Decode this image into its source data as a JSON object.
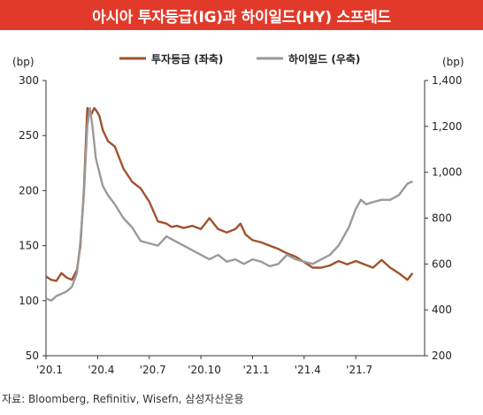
{
  "title": "아시아 투자등급(IG)과 하이일드(HY) 스프레드",
  "source": "자료: Bloomberg, Refinitiv, Wisefn, 삼성자산운용",
  "colors": {
    "banner": "#e23a2a",
    "ig": "#a0522d",
    "hy": "#9a9a9a"
  },
  "chart_data": {
    "type": "line",
    "title": "아시아 투자등급(IG)과 하이일드(HY) 스프레드",
    "left_unit": "(bp)",
    "right_unit": "(bp)",
    "left_ylim": [
      50,
      300
    ],
    "left_ticks": [
      "300",
      "250",
      "200",
      "150",
      "100",
      "50"
    ],
    "right_ylim": [
      200,
      1400
    ],
    "right_ticks": [
      "1,400",
      "1,200",
      "1,000",
      "800",
      "600",
      "400",
      "200"
    ],
    "x_ticks": [
      "'20.1",
      "'20.4",
      "'20.7",
      "'20.10",
      "'21.1",
      "'21.4",
      "'21.7"
    ],
    "grid": false,
    "legend": "top",
    "series": [
      {
        "name": "투자등급 (좌축)",
        "axis": "left",
        "color": "#a0522d",
        "x": [
          0,
          0.3,
          0.6,
          0.9,
          1.2,
          1.5,
          1.8,
          2.0,
          2.2,
          2.4,
          2.6,
          2.8,
          2.95,
          3.1,
          3.3,
          3.6,
          4.0,
          4.5,
          5.0,
          5.5,
          6.0,
          6.5,
          7.0,
          7.3,
          7.6,
          8.0,
          8.5,
          9.0,
          9.5,
          10.0,
          10.5,
          11.0,
          11.3,
          11.6,
          12.0,
          12.5,
          13.0,
          13.5,
          14.0,
          14.5,
          15.0,
          15.5,
          16.0,
          16.5,
          17.0,
          17.5,
          18.0,
          18.5,
          19.0,
          19.5,
          20.0,
          20.5,
          21.0,
          21.3
        ],
        "values": [
          122,
          119,
          118,
          125,
          121,
          119,
          128,
          150,
          200,
          275,
          268,
          275,
          272,
          268,
          255,
          245,
          240,
          220,
          208,
          202,
          190,
          172,
          170,
          167,
          168,
          166,
          168,
          165,
          175,
          165,
          162,
          165,
          170,
          160,
          155,
          153,
          150,
          147,
          143,
          140,
          135,
          130,
          130,
          132,
          136,
          133,
          136,
          133,
          130,
          137,
          130,
          125,
          119,
          125
        ]
      },
      {
        "name": "하이일드 (우축)",
        "axis": "right",
        "color": "#9a9a9a",
        "x": [
          0,
          0.3,
          0.6,
          0.9,
          1.2,
          1.5,
          1.8,
          2.0,
          2.2,
          2.4,
          2.55,
          2.7,
          2.9,
          3.1,
          3.3,
          3.6,
          4.0,
          4.5,
          5.0,
          5.5,
          6.0,
          6.5,
          7.0,
          7.5,
          8.0,
          8.5,
          9.0,
          9.5,
          10.0,
          10.5,
          11.0,
          11.5,
          12.0,
          12.5,
          13.0,
          13.5,
          14.0,
          14.5,
          15.0,
          15.5,
          16.0,
          16.5,
          17.0,
          17.3,
          17.6,
          18.0,
          18.3,
          18.6,
          19.0,
          19.5,
          20.0,
          20.5,
          21.0,
          21.3
        ],
        "values": [
          450,
          440,
          460,
          470,
          480,
          500,
          560,
          700,
          900,
          1200,
          1280,
          1200,
          1060,
          1000,
          940,
          900,
          860,
          800,
          760,
          700,
          690,
          680,
          720,
          700,
          680,
          660,
          640,
          620,
          640,
          610,
          620,
          600,
          620,
          610,
          590,
          600,
          640,
          620,
          610,
          600,
          620,
          640,
          680,
          720,
          760,
          840,
          880,
          860,
          870,
          880,
          880,
          900,
          950,
          960
        ]
      }
    ]
  }
}
